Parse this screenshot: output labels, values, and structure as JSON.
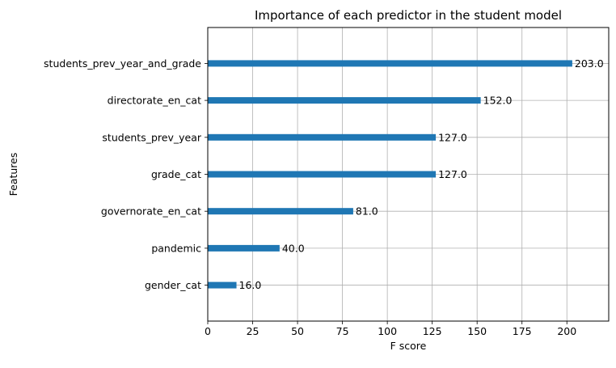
{
  "chart_data": {
    "type": "bar",
    "orientation": "horizontal",
    "title": "Importance of each predictor in the student model",
    "xlabel": "F score",
    "ylabel": "Features",
    "categories": [
      "students_prev_year_and_grade",
      "directorate_en_cat",
      "students_prev_year",
      "grade_cat",
      "governorate_en_cat",
      "pandemic",
      "gender_cat"
    ],
    "values": [
      203,
      152,
      127,
      127,
      81,
      40,
      16
    ],
    "value_labels": [
      "203.0",
      "152.0",
      "127.0",
      "127.0",
      "81.0",
      "40.0",
      "16.0"
    ],
    "xticks": [
      0,
      25,
      50,
      75,
      100,
      125,
      150,
      175,
      200
    ],
    "xlim": [
      0,
      223.3
    ],
    "grid": true,
    "bar_color": "#1f77b4"
  }
}
